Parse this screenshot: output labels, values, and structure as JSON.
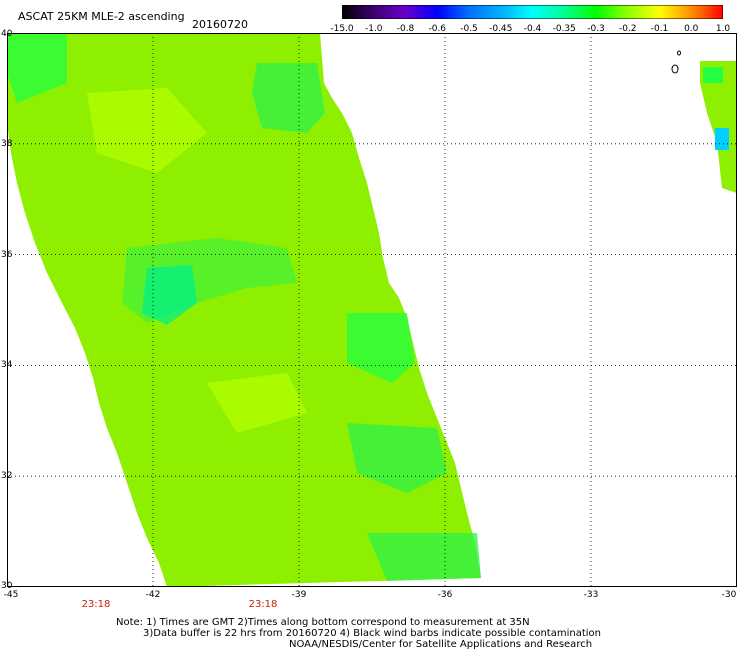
{
  "header": {
    "title": "ASCAT 25KM MLE-2 ascending",
    "date": "20160720"
  },
  "colorbar": {
    "labels": [
      "-15.0",
      "-1.0",
      "-0.8",
      "-0.6",
      "-0.5",
      "-0.45",
      "-0.4",
      "-0.35",
      "-0.3",
      "-0.2",
      "-0.1",
      "0.0",
      "1.0"
    ],
    "colors": [
      "#000000",
      "#3b0070",
      "#6a00c8",
      "#0000ff",
      "#0070ff",
      "#00b0ff",
      "#00ffff",
      "#00ff90",
      "#00ff00",
      "#90ff00",
      "#ffff00",
      "#ff9000",
      "#ff0000"
    ]
  },
  "map": {
    "lon_range": [
      -45,
      -30
    ],
    "lat_range": [
      30,
      40
    ],
    "lat_labels": [
      "40",
      "38",
      "36",
      "34",
      "32",
      "30"
    ],
    "lon_labels": [
      "-45",
      "-42",
      "-39",
      "-36",
      "-33",
      "-30"
    ],
    "times": [
      "23:18",
      "23:18"
    ],
    "swath_color": "#8ef000",
    "patch_colors": [
      "#2ef04a",
      "#46f036",
      "#00f088",
      "#20ff40",
      "#b4ff00",
      "#00d0ff"
    ]
  },
  "notes": {
    "line1": "Note: 1) Times are GMT 2)Times along bottom correspond to measurement at 35N",
    "line2": "3)Data buffer is 22 hrs from 20160720 4) Black wind barbs indicate possible contamination",
    "line3": "NOAA/NESDIS/Center for Satellite Applications and Research"
  }
}
